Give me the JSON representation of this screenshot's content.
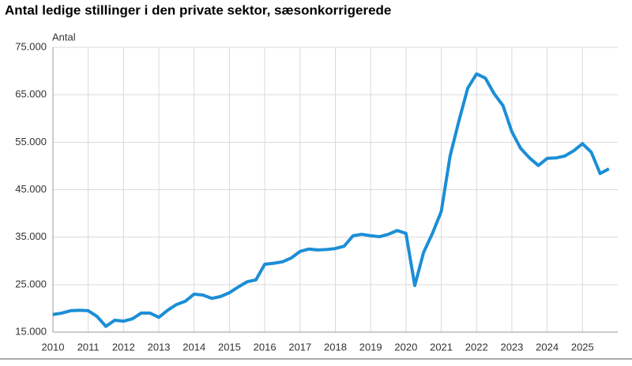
{
  "chart_data": {
    "type": "line",
    "title": "Antal ledige stillinger i den private sektor, sæsonkorrigerede",
    "y_label": "Antal",
    "x": [
      2010,
      2010.25,
      2010.5,
      2010.75,
      2011,
      2011.25,
      2011.5,
      2011.75,
      2012,
      2012.25,
      2012.5,
      2012.75,
      2013,
      2013.25,
      2013.5,
      2013.75,
      2014,
      2014.25,
      2014.5,
      2014.75,
      2015,
      2015.25,
      2015.5,
      2015.75,
      2016,
      2016.25,
      2016.5,
      2016.75,
      2017,
      2017.25,
      2017.5,
      2017.75,
      2018,
      2018.25,
      2018.5,
      2018.75,
      2019,
      2019.25,
      2019.5,
      2019.75,
      2020,
      2020.25,
      2020.5,
      2020.75,
      2021,
      2021.25,
      2021.5,
      2021.75,
      2022,
      2022.25,
      2022.5,
      2022.75,
      2023,
      2023.25,
      2023.5,
      2023.75,
      2024,
      2024.25,
      2024.5,
      2024.75,
      2025,
      2025.25,
      2025.5,
      2025.75
    ],
    "series": [
      {
        "color": "#1b8ed6",
        "values": [
          18700,
          19000,
          19500,
          19600,
          19500,
          18300,
          16200,
          17500,
          17300,
          17800,
          19000,
          19000,
          18100,
          19600,
          20800,
          21500,
          23000,
          22800,
          22100,
          22500,
          23300,
          24500,
          25600,
          26000,
          29300,
          29500,
          29800,
          30600,
          32000,
          32500,
          32300,
          32400,
          32600,
          33100,
          35300,
          35600,
          35300,
          35100,
          35600,
          36400,
          35800,
          24800,
          31800,
          35800,
          40400,
          52100,
          59500,
          66400,
          69400,
          68500,
          65200,
          62700,
          57200,
          53700,
          51700,
          50100,
          51600,
          51700,
          52100,
          53200,
          54700,
          52900,
          48400,
          49400
        ]
      }
    ],
    "xlim": [
      2010,
      2026
    ],
    "xticks": [
      2010,
      2011,
      2012,
      2013,
      2014,
      2015,
      2016,
      2017,
      2018,
      2019,
      2020,
      2021,
      2022,
      2023,
      2024,
      2025
    ],
    "ylim": [
      15000,
      75000
    ],
    "yticks": [
      {
        "value": 15000,
        "label": "15.000"
      },
      {
        "value": 25000,
        "label": "25.000"
      },
      {
        "value": 35000,
        "label": "35.000"
      },
      {
        "value": 45000,
        "label": "45.000"
      },
      {
        "value": 55000,
        "label": "55.000"
      },
      {
        "value": 65000,
        "label": "65.000"
      },
      {
        "value": 75000,
        "label": "75.000"
      }
    ],
    "grid": true
  }
}
